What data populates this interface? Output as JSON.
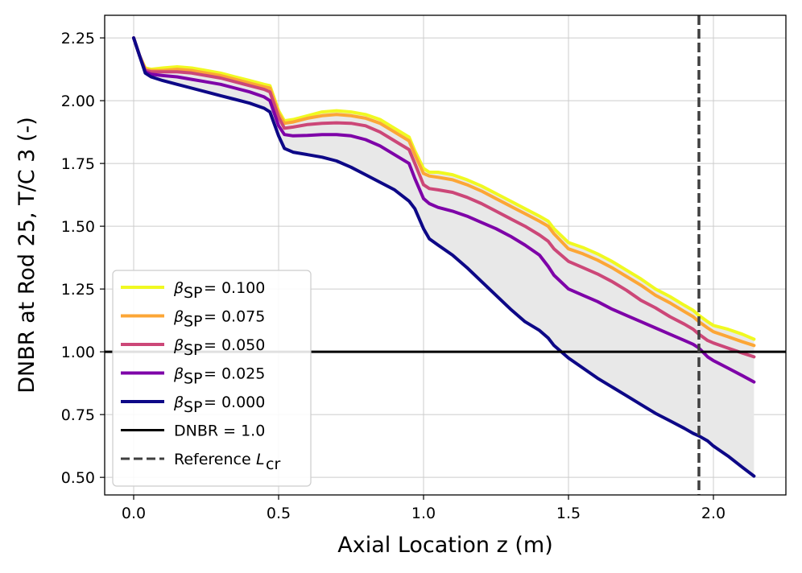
{
  "chart_data": {
    "type": "line",
    "title": "",
    "xlabel": "Axial Location z (m)",
    "ylabel": "DNBR at Rod 25, T/C 3 (-)",
    "xlim": [
      -0.1,
      2.25
    ],
    "ylim": [
      0.43,
      2.34
    ],
    "x_ticks": [
      0.0,
      0.5,
      1.0,
      1.5,
      2.0
    ],
    "x_tick_labels": [
      "0.0",
      "0.5",
      "1.0",
      "1.5",
      "2.0"
    ],
    "y_ticks": [
      0.5,
      0.75,
      1.0,
      1.25,
      1.5,
      1.75,
      2.0,
      2.25
    ],
    "y_tick_labels": [
      "0.50",
      "0.75",
      "1.00",
      "1.25",
      "1.50",
      "1.75",
      "2.00",
      "2.25"
    ],
    "grid": true,
    "legend_position": "lower-left",
    "x": [
      0.0,
      0.02,
      0.04,
      0.06,
      0.1,
      0.15,
      0.2,
      0.25,
      0.3,
      0.35,
      0.4,
      0.45,
      0.47,
      0.5,
      0.52,
      0.55,
      0.6,
      0.65,
      0.7,
      0.75,
      0.8,
      0.85,
      0.9,
      0.95,
      0.97,
      1.0,
      1.02,
      1.05,
      1.1,
      1.15,
      1.2,
      1.25,
      1.3,
      1.35,
      1.4,
      1.43,
      1.45,
      1.5,
      1.55,
      1.6,
      1.65,
      1.7,
      1.75,
      1.8,
      1.85,
      1.9,
      1.93,
      1.95,
      1.98,
      2.0,
      2.05,
      2.1,
      2.14
    ],
    "series": [
      {
        "name": "β_SP = 0.100",
        "legend_label": "= 0.100",
        "color": "#f0f921",
        "values": [
          2.25,
          2.18,
          2.13,
          2.125,
          2.13,
          2.135,
          2.13,
          2.12,
          2.11,
          2.095,
          2.08,
          2.065,
          2.06,
          1.96,
          1.92,
          1.925,
          1.94,
          1.955,
          1.96,
          1.955,
          1.945,
          1.925,
          1.89,
          1.855,
          1.8,
          1.73,
          1.715,
          1.715,
          1.705,
          1.685,
          1.66,
          1.63,
          1.6,
          1.57,
          1.54,
          1.52,
          1.49,
          1.435,
          1.415,
          1.39,
          1.36,
          1.325,
          1.29,
          1.25,
          1.22,
          1.185,
          1.165,
          1.145,
          1.12,
          1.105,
          1.09,
          1.07,
          1.05
        ]
      },
      {
        "name": "β_SP = 0.075",
        "legend_label": "= 0.075",
        "color": "#fca636",
        "values": [
          2.25,
          2.18,
          2.125,
          2.12,
          2.12,
          2.125,
          2.12,
          2.11,
          2.1,
          2.085,
          2.07,
          2.055,
          2.05,
          1.95,
          1.91,
          1.915,
          1.93,
          1.94,
          1.945,
          1.94,
          1.93,
          1.91,
          1.875,
          1.84,
          1.785,
          1.71,
          1.7,
          1.695,
          1.685,
          1.665,
          1.64,
          1.61,
          1.58,
          1.55,
          1.52,
          1.5,
          1.47,
          1.41,
          1.39,
          1.365,
          1.335,
          1.3,
          1.265,
          1.225,
          1.195,
          1.16,
          1.14,
          1.12,
          1.095,
          1.08,
          1.06,
          1.04,
          1.025
        ]
      },
      {
        "name": "β_SP = 0.050",
        "legend_label": "= 0.050",
        "color": "#cc4778",
        "values": [
          2.25,
          2.18,
          2.12,
          2.115,
          2.115,
          2.115,
          2.11,
          2.1,
          2.09,
          2.075,
          2.06,
          2.045,
          2.035,
          1.935,
          1.89,
          1.895,
          1.905,
          1.91,
          1.912,
          1.91,
          1.9,
          1.875,
          1.84,
          1.805,
          1.75,
          1.665,
          1.65,
          1.645,
          1.635,
          1.615,
          1.59,
          1.56,
          1.53,
          1.5,
          1.465,
          1.44,
          1.41,
          1.36,
          1.335,
          1.31,
          1.28,
          1.245,
          1.205,
          1.175,
          1.14,
          1.11,
          1.09,
          1.07,
          1.045,
          1.035,
          1.015,
          0.995,
          0.98
        ]
      },
      {
        "name": "β_SP = 0.025",
        "legend_label": "= 0.025",
        "color": "#7e03a8",
        "values": [
          2.25,
          2.18,
          2.115,
          2.105,
          2.1,
          2.095,
          2.085,
          2.075,
          2.065,
          2.05,
          2.035,
          2.015,
          2.0,
          1.9,
          1.865,
          1.86,
          1.862,
          1.865,
          1.865,
          1.86,
          1.845,
          1.82,
          1.785,
          1.75,
          1.69,
          1.61,
          1.59,
          1.575,
          1.56,
          1.54,
          1.515,
          1.49,
          1.46,
          1.425,
          1.385,
          1.34,
          1.305,
          1.25,
          1.225,
          1.2,
          1.17,
          1.145,
          1.12,
          1.095,
          1.07,
          1.045,
          1.03,
          1.015,
          0.98,
          0.965,
          0.935,
          0.905,
          0.88
        ]
      },
      {
        "name": "β_SP = 0.000",
        "legend_label": "= 0.000",
        "color": "#0d0887",
        "values": [
          2.25,
          2.18,
          2.11,
          2.095,
          2.08,
          2.065,
          2.05,
          2.035,
          2.02,
          2.005,
          1.99,
          1.97,
          1.955,
          1.86,
          1.81,
          1.795,
          1.785,
          1.775,
          1.76,
          1.735,
          1.705,
          1.675,
          1.645,
          1.6,
          1.57,
          1.49,
          1.45,
          1.425,
          1.385,
          1.335,
          1.28,
          1.225,
          1.17,
          1.12,
          1.085,
          1.055,
          1.025,
          0.975,
          0.935,
          0.895,
          0.86,
          0.825,
          0.79,
          0.755,
          0.725,
          0.695,
          0.675,
          0.665,
          0.645,
          0.625,
          0.585,
          0.54,
          0.505
        ]
      }
    ],
    "fill_between": {
      "upper": "β_SP = 0.100",
      "lower": "β_SP = 0.000",
      "color": "#e8e8e8"
    },
    "hlines": [
      {
        "y": 1.0,
        "label": "DNBR = 1.0",
        "color": "#000000",
        "style": "solid"
      }
    ],
    "vlines": [
      {
        "x": 1.95,
        "label": "Reference L_cr",
        "legend_label": "Reference",
        "color": "#3f3f3f",
        "style": "dashed"
      }
    ]
  }
}
